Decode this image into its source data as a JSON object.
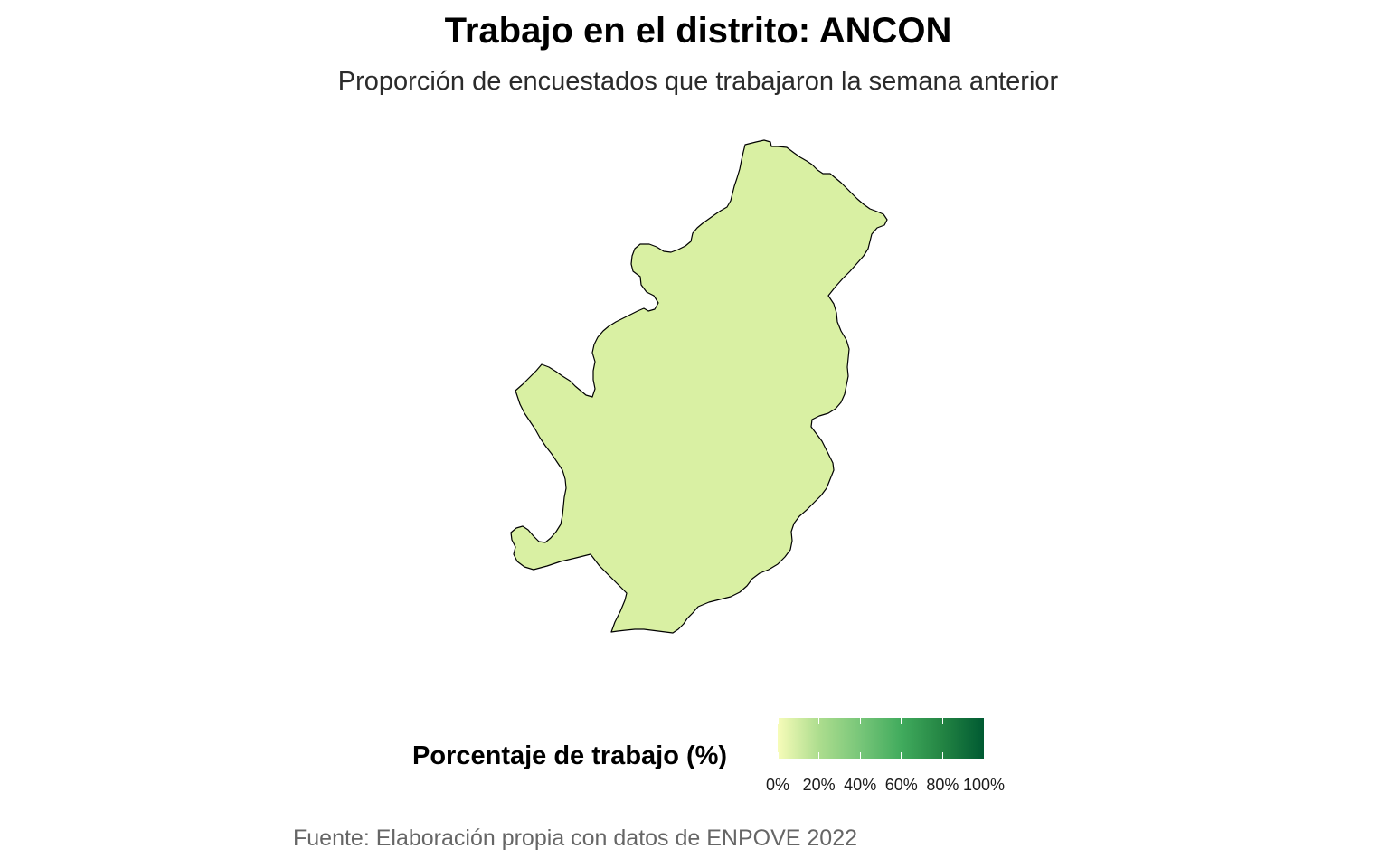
{
  "title": "Trabajo en el distrito: ANCON",
  "subtitle": "Proporción de encuestados que trabajaron la semana anterior",
  "caption": "Fuente: Elaboración propia con datos de ENPOVE 2022",
  "map": {
    "region_name": "ANCON",
    "fill_color": "#d9f0a3",
    "stroke_color": "#000000"
  },
  "legend": {
    "title": "Porcentaje de trabajo (%)",
    "gradient_colors": [
      "#f7fcb9",
      "#addd8e",
      "#78c679",
      "#41ab5d",
      "#238443",
      "#005a32"
    ],
    "labels": [
      "0%",
      "20%",
      "40%",
      "60%",
      "80%",
      "100%"
    ]
  }
}
